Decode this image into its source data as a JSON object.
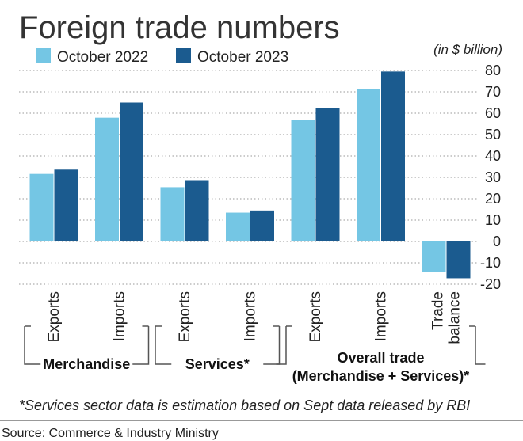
{
  "chart_data": {
    "type": "bar",
    "title": "Foreign trade numbers",
    "unit_label": "(in $ billion)",
    "ylim": [
      -20,
      80
    ],
    "yticks": [
      -20,
      -10,
      0,
      10,
      20,
      30,
      40,
      50,
      60,
      70,
      80
    ],
    "grid": true,
    "legend_position": "top-left",
    "categories": [
      "Exports",
      "Imports",
      "Exports",
      "Imports",
      "Exports",
      "Imports",
      "Trade balance"
    ],
    "category_lines": [
      [
        "Exports"
      ],
      [
        "Imports"
      ],
      [
        "Exports"
      ],
      [
        "Imports"
      ],
      [
        "Exports"
      ],
      [
        "Imports"
      ],
      [
        "Trade",
        "balance"
      ]
    ],
    "series": [
      {
        "name": "October 2022",
        "color": "#74c6e4",
        "values": [
          31.6,
          57.9,
          25.4,
          13.5,
          57.0,
          71.4,
          -14.4
        ]
      },
      {
        "name": "October 2023",
        "color": "#1b5b8f",
        "values": [
          33.6,
          65.0,
          28.7,
          14.5,
          62.3,
          79.5,
          -17.2
        ]
      }
    ],
    "groups": [
      {
        "label_lines": [
          "Merchandise"
        ],
        "first": 0,
        "last": 1
      },
      {
        "label_lines": [
          "Services*"
        ],
        "first": 2,
        "last": 3
      },
      {
        "label_lines": [
          "Overall trade",
          "(Merchandise + Services)*"
        ],
        "first": 4,
        "last": 6
      }
    ]
  },
  "footnote": "*Services sector data is estimation based on Sept data released by RBI",
  "source": "Source: Commerce & Industry Ministry"
}
